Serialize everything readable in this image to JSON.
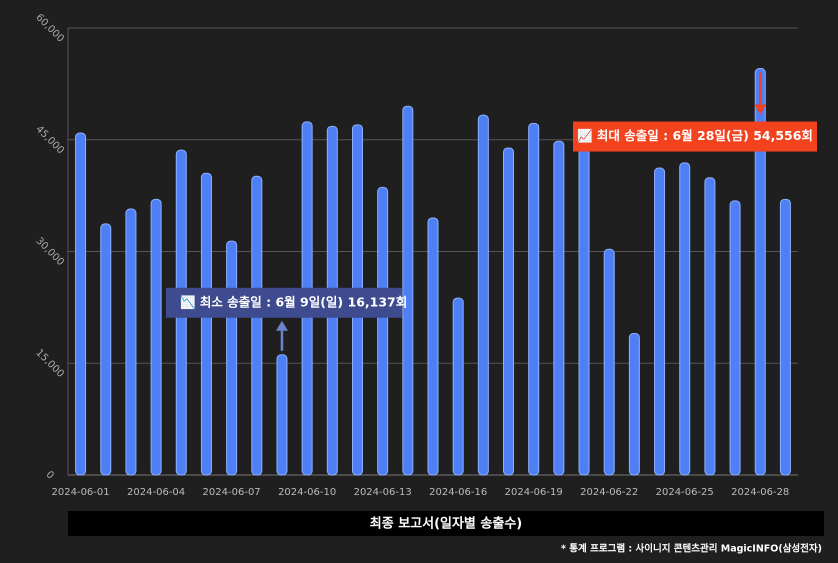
{
  "chart_data": {
    "type": "bar",
    "categories": [
      "2024-06-01",
      null,
      null,
      "2024-06-04",
      null,
      null,
      "2024-06-07",
      null,
      null,
      "2024-06-10",
      null,
      null,
      "2024-06-13",
      null,
      null,
      "2024-06-16",
      null,
      null,
      "2024-06-19",
      null,
      null,
      "2024-06-22",
      null,
      null,
      "2024-06-25",
      null,
      null,
      "2024-06-28",
      null
    ],
    "values": [
      45900,
      33700,
      35700,
      37000,
      43600,
      40500,
      31400,
      40100,
      16137,
      47400,
      46800,
      47000,
      38600,
      49500,
      34500,
      23750,
      48300,
      43900,
      47200,
      44800,
      44100,
      30300,
      19000,
      41200,
      41900,
      39900,
      36800,
      54556,
      37000
    ],
    "color": "#4f7ff5",
    "ylim": [
      0,
      60000
    ],
    "yticks": [
      0,
      {
        "value": 15000,
        "label": "15,000"
      },
      {
        "value": 30000,
        "label": "30,000"
      },
      {
        "value": 45000,
        "label": "45,000"
      },
      {
        "value": 60000,
        "label": "60,000"
      }
    ],
    "grid": true,
    "annotations": [
      {
        "text": "📉 최소 송출일 : 6월 9일(일) 16,137회",
        "color": "#3e4b8e"
      },
      {
        "text": "📈 최대 송출일 : 6월 28일(금) 54,556회",
        "color": "#f2421e"
      }
    ],
    "footer_title": "최종 보고서(일자별 송출수)",
    "source_note": "* 통계 프로그램 : 사이니지 콘텐츠관리 MagicINFO(삼성전자)"
  }
}
